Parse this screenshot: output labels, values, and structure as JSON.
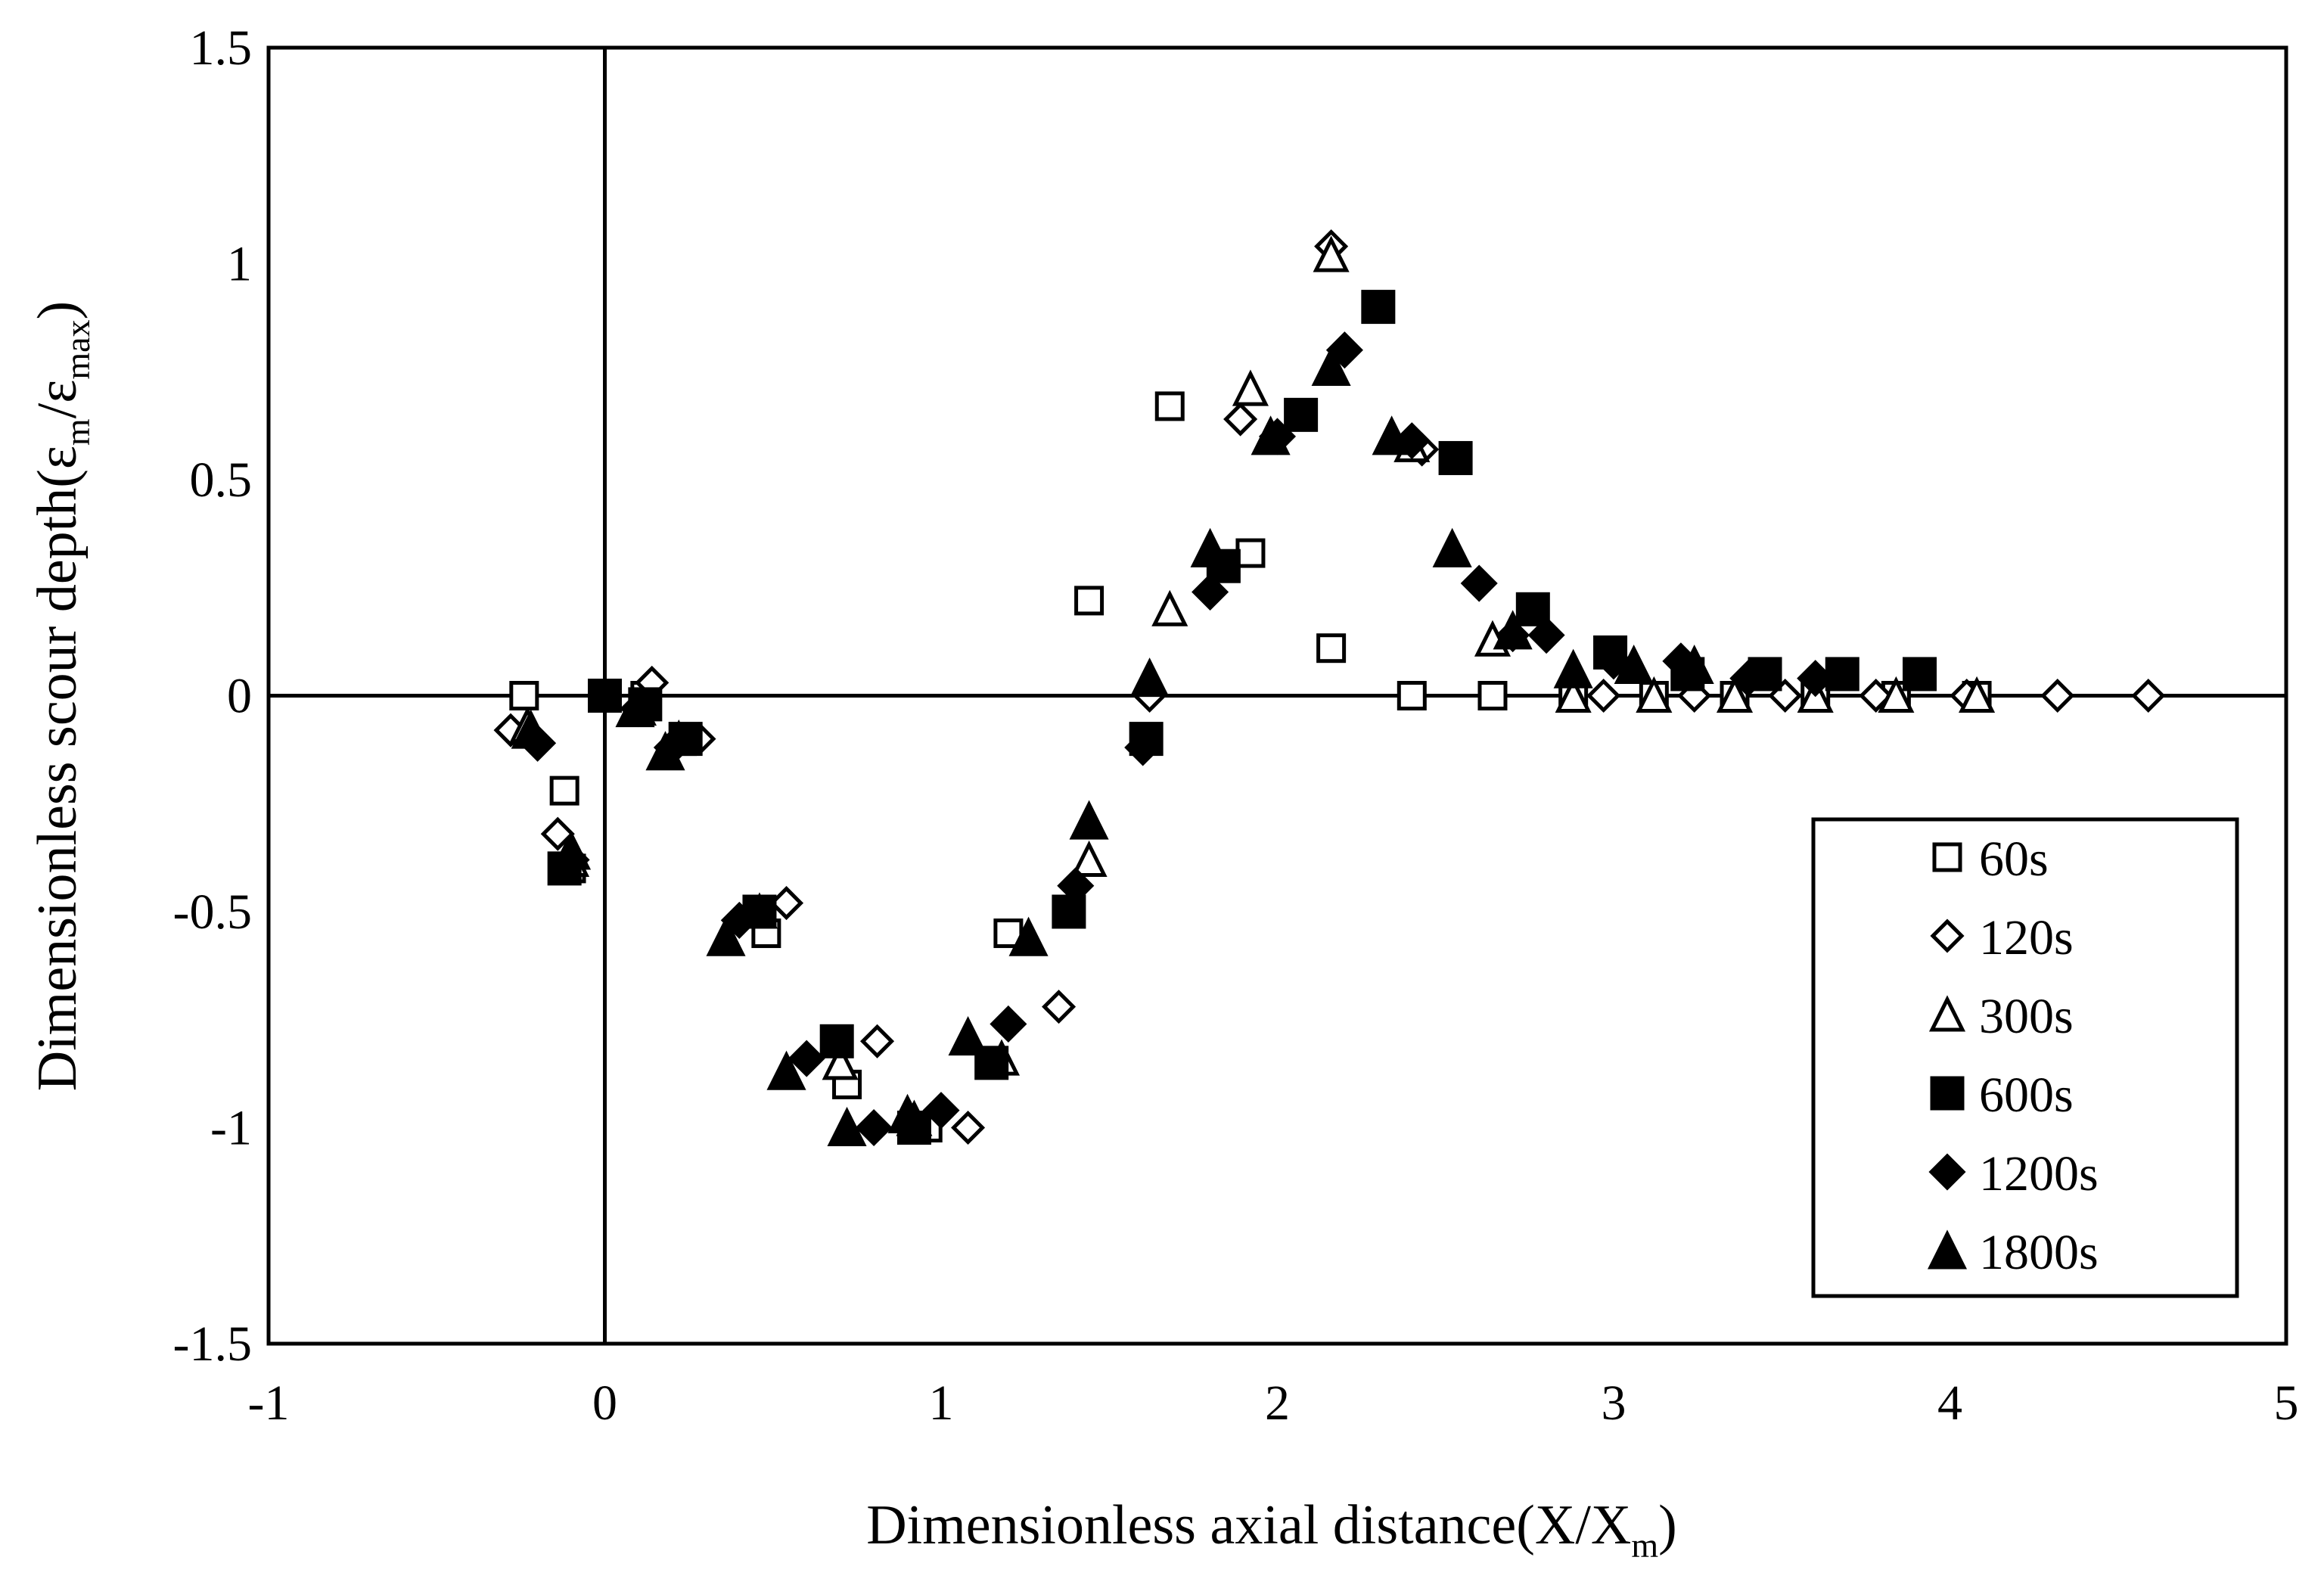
{
  "chart_data": {
    "type": "scatter",
    "title": "",
    "xlabel": {
      "prefix": "Dimensionless axial distance(X/X",
      "sub": "m",
      "suffix": ")"
    },
    "ylabel": {
      "prefix": "Dimensionless scour depth(ε",
      "sub1": "m",
      "mid": "/ε",
      "sub2": "max",
      "suffix": ")"
    },
    "xlim": [
      -1,
      5
    ],
    "ylim": [
      -1.5,
      1.5
    ],
    "x_ticks": [
      -1,
      0,
      1,
      2,
      3,
      4,
      5
    ],
    "x_tick_labels": [
      "-1",
      "0",
      "1",
      "2",
      "3",
      "4",
      "5"
    ],
    "y_ticks": [
      -1.5,
      -1,
      -0.5,
      0,
      0.5,
      1,
      1.5
    ],
    "y_tick_labels": [
      "-1.5",
      "-1",
      "-0.5",
      "0",
      "0.5",
      "1",
      "1.5"
    ],
    "reference_lines": {
      "x": 0,
      "y": 0
    },
    "legend_position": "bottom-right",
    "series": [
      {
        "name": "60s",
        "marker": "square",
        "filled": false,
        "points": [
          [
            -0.24,
            0
          ],
          [
            -0.12,
            -0.22
          ],
          [
            -0.1,
            -0.4
          ],
          [
            0.12,
            0
          ],
          [
            0.24,
            -0.1
          ],
          [
            0.48,
            -0.55
          ],
          [
            0.72,
            -0.9
          ],
          [
            0.96,
            -1.0
          ],
          [
            1.2,
            -0.55
          ],
          [
            1.44,
            0.22
          ],
          [
            1.68,
            0.67
          ],
          [
            1.92,
            0.33
          ],
          [
            2.16,
            0.11
          ],
          [
            2.4,
            0
          ],
          [
            2.64,
            0
          ],
          [
            2.88,
            0
          ],
          [
            3.12,
            0
          ],
          [
            3.36,
            0
          ],
          [
            3.6,
            0
          ],
          [
            3.84,
            0
          ],
          [
            4.08,
            0
          ]
        ]
      },
      {
        "name": "120s",
        "marker": "diamond",
        "filled": false,
        "points": [
          [
            -0.28,
            -0.08
          ],
          [
            -0.14,
            -0.32
          ],
          [
            0.14,
            0.03
          ],
          [
            0.28,
            -0.1
          ],
          [
            0.54,
            -0.48
          ],
          [
            0.81,
            -0.8
          ],
          [
            1.08,
            -1.0
          ],
          [
            1.35,
            -0.72
          ],
          [
            1.62,
            0
          ],
          [
            1.89,
            0.64
          ],
          [
            2.16,
            1.04
          ],
          [
            2.43,
            0.57
          ],
          [
            2.7,
            0.14
          ],
          [
            2.97,
            0
          ],
          [
            3.24,
            0
          ],
          [
            3.51,
            0
          ],
          [
            3.78,
            0
          ],
          [
            4.05,
            0
          ],
          [
            4.32,
            0
          ],
          [
            4.59,
            0
          ]
        ]
      },
      {
        "name": "300s",
        "marker": "triangle",
        "filled": false,
        "points": [
          [
            -0.23,
            -0.07
          ],
          [
            -0.1,
            -0.38
          ],
          [
            0.1,
            -0.03
          ],
          [
            0.22,
            -0.1
          ],
          [
            0.46,
            -0.5
          ],
          [
            0.7,
            -0.85
          ],
          [
            0.92,
            -0.98
          ],
          [
            1.18,
            -0.84
          ],
          [
            1.44,
            -0.38
          ],
          [
            1.68,
            0.2
          ],
          [
            1.92,
            0.71
          ],
          [
            2.16,
            1.02
          ],
          [
            2.4,
            0.58
          ],
          [
            2.64,
            0.13
          ],
          [
            2.88,
            0
          ],
          [
            3.12,
            0
          ],
          [
            3.36,
            0
          ],
          [
            3.6,
            0
          ],
          [
            3.84,
            0
          ],
          [
            4.08,
            0
          ]
        ]
      },
      {
        "name": "600s",
        "marker": "square",
        "filled": true,
        "points": [
          [
            -0.12,
            -0.4
          ],
          [
            0,
            0
          ],
          [
            0.12,
            -0.02
          ],
          [
            0.24,
            -0.1
          ],
          [
            0.46,
            -0.5
          ],
          [
            0.69,
            -0.8
          ],
          [
            0.92,
            -1.0
          ],
          [
            1.15,
            -0.85
          ],
          [
            1.38,
            -0.5
          ],
          [
            1.61,
            -0.1
          ],
          [
            1.84,
            0.3
          ],
          [
            2.07,
            0.65
          ],
          [
            2.3,
            0.9
          ],
          [
            2.53,
            0.55
          ],
          [
            2.76,
            0.2
          ],
          [
            2.99,
            0.1
          ],
          [
            3.22,
            0.05
          ],
          [
            3.45,
            0.05
          ],
          [
            3.68,
            0.05
          ],
          [
            3.91,
            0.05
          ]
        ]
      },
      {
        "name": "1200s",
        "marker": "diamond",
        "filled": true,
        "points": [
          [
            -0.2,
            -0.11
          ],
          [
            -0.1,
            -0.38
          ],
          [
            0.1,
            -0.03
          ],
          [
            0.2,
            -0.12
          ],
          [
            0.4,
            -0.52
          ],
          [
            0.6,
            -0.84
          ],
          [
            0.8,
            -1.0
          ],
          [
            1.0,
            -0.96
          ],
          [
            1.2,
            -0.76
          ],
          [
            1.4,
            -0.44
          ],
          [
            1.6,
            -0.12
          ],
          [
            1.8,
            0.24
          ],
          [
            2.0,
            0.6
          ],
          [
            2.2,
            0.8
          ],
          [
            2.4,
            0.59
          ],
          [
            2.6,
            0.26
          ],
          [
            2.8,
            0.14
          ],
          [
            3.0,
            0.08
          ],
          [
            3.2,
            0.08
          ],
          [
            3.4,
            0.04
          ],
          [
            3.6,
            0.04
          ]
        ]
      },
      {
        "name": "1800s",
        "marker": "triangle",
        "filled": true,
        "points": [
          [
            -0.22,
            -0.08
          ],
          [
            -0.1,
            -0.36
          ],
          [
            0.09,
            -0.03
          ],
          [
            0.18,
            -0.13
          ],
          [
            0.36,
            -0.56
          ],
          [
            0.54,
            -0.87
          ],
          [
            0.72,
            -1.0
          ],
          [
            0.9,
            -0.97
          ],
          [
            1.08,
            -0.79
          ],
          [
            1.26,
            -0.56
          ],
          [
            1.44,
            -0.29
          ],
          [
            1.62,
            0.04
          ],
          [
            1.8,
            0.34
          ],
          [
            1.98,
            0.6
          ],
          [
            2.16,
            0.76
          ],
          [
            2.34,
            0.6
          ],
          [
            2.52,
            0.34
          ],
          [
            2.7,
            0.15
          ],
          [
            2.88,
            0.06
          ],
          [
            3.06,
            0.07
          ],
          [
            3.24,
            0.07
          ]
        ]
      }
    ]
  }
}
